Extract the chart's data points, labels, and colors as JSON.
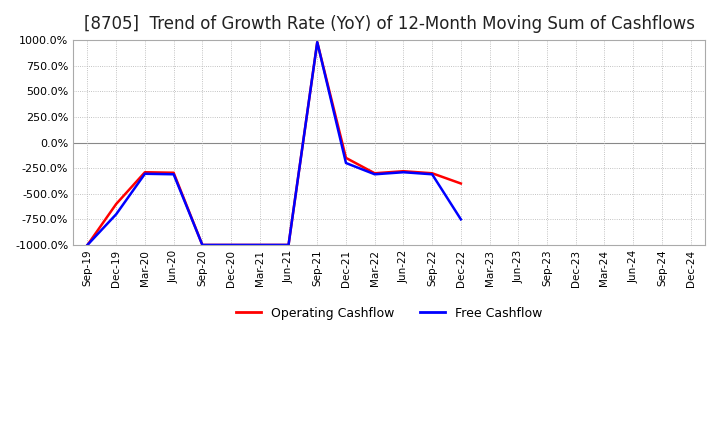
{
  "title": "[8705]  Trend of Growth Rate (YoY) of 12-Month Moving Sum of Cashflows",
  "ylim": [
    -1000,
    1000
  ],
  "yticks": [
    -1000,
    -750,
    -500,
    -250,
    0,
    250,
    500,
    750,
    1000
  ],
  "x_labels": [
    "Sep-19",
    "Dec-19",
    "Mar-20",
    "Jun-20",
    "Sep-20",
    "Dec-20",
    "Mar-21",
    "Jun-21",
    "Sep-21",
    "Dec-21",
    "Mar-22",
    "Jun-22",
    "Sep-22",
    "Dec-22",
    "Mar-23",
    "Jun-23",
    "Sep-23",
    "Dec-23",
    "Mar-24",
    "Jun-24",
    "Sep-24",
    "Dec-24"
  ],
  "operating_cashflow": [
    -1000,
    -600,
    -290,
    -295,
    -1000,
    -1000,
    -1000,
    -1000,
    980,
    -150,
    -300,
    -280,
    -300,
    -400,
    null,
    null,
    null,
    null,
    null,
    null,
    null,
    null
  ],
  "free_cashflow": [
    -1000,
    -700,
    -305,
    -310,
    -1000,
    -1000,
    -1000,
    -1000,
    980,
    -200,
    -310,
    -290,
    -310,
    -750,
    null,
    null,
    null,
    null,
    null,
    null,
    null,
    null
  ],
  "op_color": "#ff0000",
  "free_color": "#0000ff",
  "background_color": "#ffffff",
  "grid_color": "#b0b0b0",
  "title_color": "#222222",
  "title_fontsize": 12
}
